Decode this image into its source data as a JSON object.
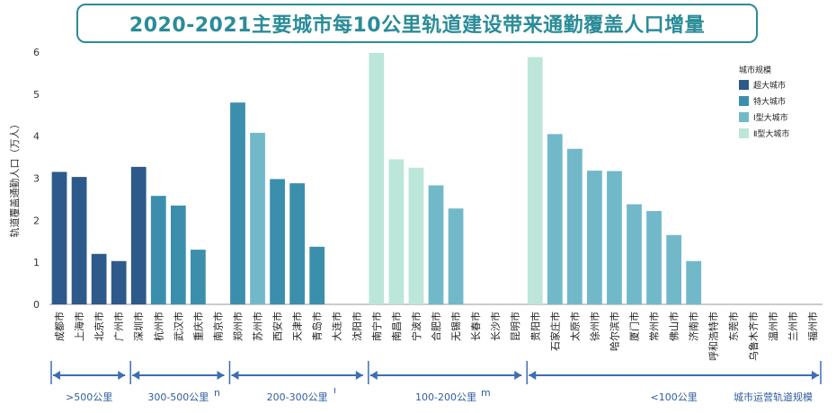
{
  "title": "2020-2021主要城市每10公里轨道建设带来通勤覆盖人口增量",
  "chart_data": {
    "type": "bar",
    "ylabel": "轨道覆盖通勤人口（万人）",
    "ylim": [
      0,
      6
    ],
    "yticks": [
      0,
      1,
      2,
      3,
      4,
      5,
      6
    ],
    "legend_title": "城市规模",
    "legend_position": "top-right",
    "classes": [
      {
        "name": "超大城市",
        "color": "#2d5a8a"
      },
      {
        "name": "特大城市",
        "color": "#3b8fad"
      },
      {
        "name": "Ⅰ型大城市",
        "color": "#71b9c9"
      },
      {
        "name": "Ⅱ型大城市",
        "color": "#bce6da"
      }
    ],
    "bars": [
      {
        "city": "成都市",
        "value": 3.15,
        "cls": 0
      },
      {
        "city": "上海市",
        "value": 3.03,
        "cls": 0
      },
      {
        "city": "北京市",
        "value": 1.2,
        "cls": 0
      },
      {
        "city": "广州市",
        "value": 1.03,
        "cls": 0
      },
      {
        "city": "深圳市",
        "value": 3.27,
        "cls": 0
      },
      {
        "city": "杭州市",
        "value": 2.58,
        "cls": 1
      },
      {
        "city": "武汉市",
        "value": 2.35,
        "cls": 1
      },
      {
        "city": "重庆市",
        "value": 1.3,
        "cls": 1
      },
      {
        "city": "南京市",
        "value": null,
        "cls": 1
      },
      {
        "city": "郑州市",
        "value": 4.8,
        "cls": 1
      },
      {
        "city": "苏州市",
        "value": 4.08,
        "cls": 2
      },
      {
        "city": "西安市",
        "value": 2.98,
        "cls": 1
      },
      {
        "city": "天津市",
        "value": 2.88,
        "cls": 1
      },
      {
        "city": "青岛市",
        "value": 1.37,
        "cls": 1
      },
      {
        "city": "大连市",
        "value": null,
        "cls": 1
      },
      {
        "city": "沈阳市",
        "value": null,
        "cls": 1
      },
      {
        "city": "南宁市",
        "value": 5.98,
        "cls": 3
      },
      {
        "city": "南昌市",
        "value": 3.45,
        "cls": 3
      },
      {
        "city": "宁波市",
        "value": 3.25,
        "cls": 3
      },
      {
        "city": "合肥市",
        "value": 2.83,
        "cls": 2
      },
      {
        "city": "无锡市",
        "value": 2.28,
        "cls": 2
      },
      {
        "city": "长春市",
        "value": null,
        "cls": 2
      },
      {
        "city": "长沙市",
        "value": null,
        "cls": 2
      },
      {
        "city": "昆明市",
        "value": null,
        "cls": 2
      },
      {
        "city": "贵阳市",
        "value": 5.88,
        "cls": 3
      },
      {
        "city": "石家庄市",
        "value": 4.05,
        "cls": 2
      },
      {
        "city": "太原市",
        "value": 3.7,
        "cls": 2
      },
      {
        "city": "徐州市",
        "value": 3.18,
        "cls": 2
      },
      {
        "city": "哈尔滨市",
        "value": 3.17,
        "cls": 2
      },
      {
        "city": "厦门市",
        "value": 2.38,
        "cls": 2
      },
      {
        "city": "常州市",
        "value": 2.22,
        "cls": 2
      },
      {
        "city": "佛山市",
        "value": 1.65,
        "cls": 2
      },
      {
        "city": "济南市",
        "value": 1.03,
        "cls": 2
      },
      {
        "city": "呼和浩特市",
        "value": null,
        "cls": 2
      },
      {
        "city": "东莞市",
        "value": null,
        "cls": 2
      },
      {
        "city": "乌鲁木齐市",
        "value": null,
        "cls": 2
      },
      {
        "city": "温州市",
        "value": null,
        "cls": 2
      },
      {
        "city": "兰州市",
        "value": null,
        "cls": 2
      },
      {
        "city": "福州市",
        "value": null,
        "cls": 2
      }
    ],
    "groups": [
      {
        "label": ">500公里",
        "from": 0,
        "to": 3
      },
      {
        "label": "300-500公里",
        "from": 4,
        "to": 8
      },
      {
        "label": "200-300公里",
        "from": 9,
        "to": 15
      },
      {
        "label": "100-200公里",
        "from": 16,
        "to": 23
      },
      {
        "label": "<100公里",
        "from": 24,
        "to": 38
      }
    ],
    "xlabel": "城市运营轨道规模",
    "stray_marks": [
      "n",
      "ı",
      "m"
    ]
  }
}
